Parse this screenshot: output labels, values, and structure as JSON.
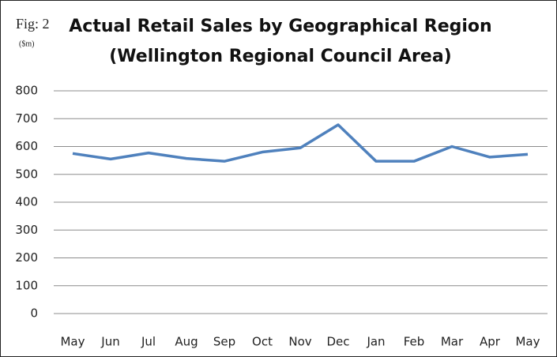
{
  "chart_data": {
    "type": "line",
    "figure_label": "Fig: 2",
    "unit_label": "($m)",
    "title": [
      "Actual Retail Sales by Geographical Region",
      "(Wellington Regional Council Area)"
    ],
    "categories": [
      "May",
      "Jun",
      "Jul",
      "Aug",
      "Sep",
      "Oct",
      "Nov",
      "Dec",
      "Jan",
      "Feb",
      "Mar",
      "Apr",
      "May"
    ],
    "series": [
      {
        "name": "Retail Sales",
        "color": "#4f81bd",
        "values": [
          575,
          555,
          577,
          557,
          547,
          580,
          595,
          678,
          547,
          547,
          600,
          562,
          572
        ]
      }
    ],
    "ylim": [
      0,
      800
    ],
    "yticks": [
      0,
      100,
      200,
      300,
      400,
      500,
      600,
      700,
      800
    ],
    "grid": true
  }
}
